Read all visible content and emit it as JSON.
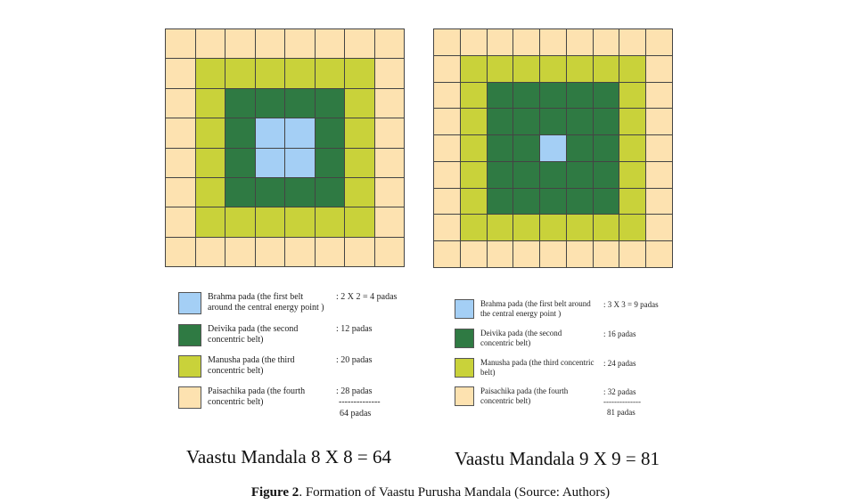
{
  "colors": {
    "brahma": "#a4cff5",
    "deivika": "#2f7a43",
    "manusha": "#c9d23a",
    "paisachika": "#fde2b0",
    "grid_line": "#444444"
  },
  "left": {
    "grid_size": 8,
    "title": "Vaastu Mandala 8 X 8 = 64",
    "legend": [
      {
        "key": "brahma",
        "label_lines": [
          "Brahma pada (the first belt",
          "around the central energy point )"
        ],
        "count": ": 2 X 2 = 4 padas"
      },
      {
        "key": "deivika",
        "label_lines": [
          "Deivika pada (the second",
          "concentric belt)"
        ],
        "count": ": 12 padas"
      },
      {
        "key": "manusha",
        "label_lines": [
          "Manusha pada (the third",
          "concentric belt)"
        ],
        "count": ": 20 padas"
      },
      {
        "key": "paisachika",
        "label_lines": [
          "Paisachika pada (the fourth",
          "concentric belt)"
        ],
        "count": ": 28 padas"
      }
    ],
    "total_rule": "--------------",
    "total": "64 padas"
  },
  "right": {
    "grid_size": 9,
    "title": "Vaastu Mandala 9 X 9 = 81",
    "legend": [
      {
        "key": "brahma",
        "label_lines": [
          "Brahma pada (the first belt around",
          "the central energy point )"
        ],
        "count": ": 3 X 3 = 9 padas"
      },
      {
        "key": "deivika",
        "label_lines": [
          "Deivika pada (the second",
          "concentric belt)"
        ],
        "count": ": 16 padas"
      },
      {
        "key": "manusha",
        "label_lines": [
          "Manusha pada (the third concentric",
          "belt)"
        ],
        "count": ": 24 padas"
      },
      {
        "key": "paisachika",
        "label_lines": [
          "Paisachika pada (the fourth",
          "concentric belt)"
        ],
        "count": ": 32 padas"
      }
    ],
    "total_rule": "--------------",
    "total": "81 padas"
  },
  "caption": {
    "label": "Figure 2",
    "text": ". Formation of Vaastu Purusha Mandala (Source: Authors)"
  }
}
